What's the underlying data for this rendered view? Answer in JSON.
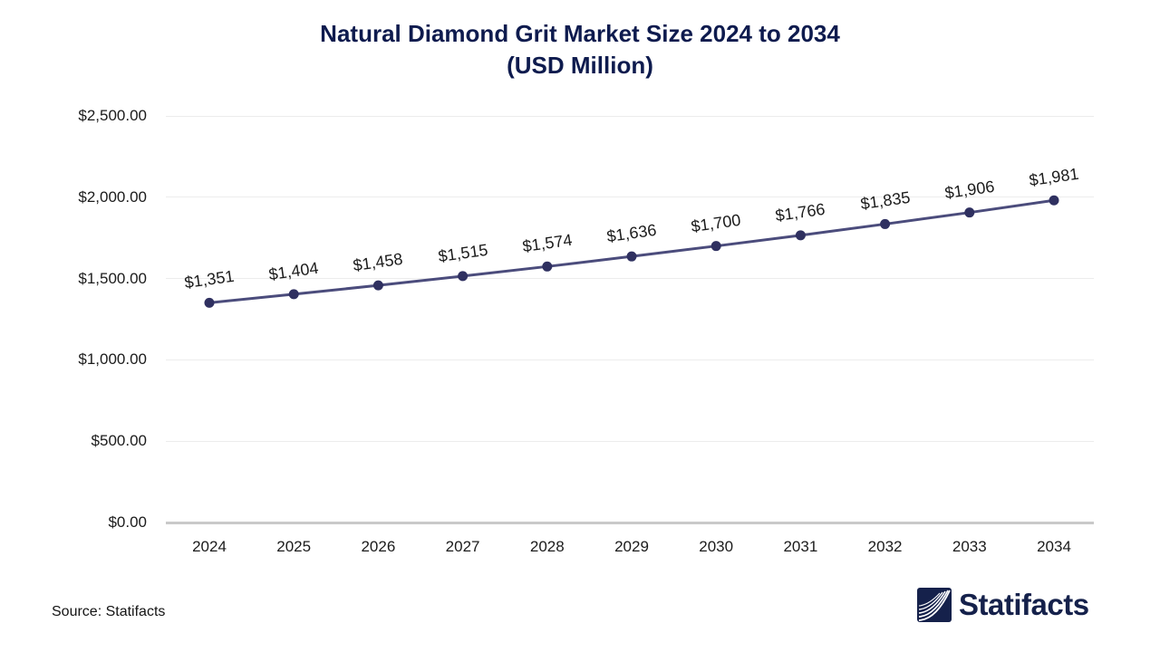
{
  "title": {
    "line1": "Natural Diamond Grit Market Size 2024 to 2034",
    "line2": "(USD Million)"
  },
  "source": "Source: Statifacts",
  "brand": {
    "name": "Statifacts",
    "logo_icon": "waves-icon"
  },
  "colors": {
    "title": "#0e1b4e",
    "line": "#4b4c7c",
    "marker": "#2f3060",
    "grid": "#ececec",
    "axis": "#c9c9c9",
    "text": "#1b1b1b",
    "brand": "#15214b"
  },
  "chart_data": {
    "type": "line",
    "title": "Natural Diamond Grit Market Size 2024 to 2034 (USD Million)",
    "xlabel": "",
    "ylabel": "",
    "categories": [
      "2024",
      "2025",
      "2026",
      "2027",
      "2028",
      "2029",
      "2030",
      "2031",
      "2032",
      "2033",
      "2034"
    ],
    "series": [
      {
        "name": "Natural Diamond Grit Market Size (USD Million)",
        "values": [
          1351,
          1404,
          1458,
          1515,
          1574,
          1636,
          1700,
          1766,
          1835,
          1906,
          1981
        ]
      }
    ],
    "point_labels": [
      "$1,351",
      "$1,404",
      "$1,458",
      "$1,515",
      "$1,574",
      "$1,636",
      "$1,700",
      "$1,766",
      "$1,835",
      "$1,906",
      "$1,981"
    ],
    "ylim": [
      0,
      2500
    ],
    "yticks": [
      {
        "value": 0,
        "label": "$0.00"
      },
      {
        "value": 500,
        "label": "$500.00"
      },
      {
        "value": 1000,
        "label": "$1,000.00"
      },
      {
        "value": 1500,
        "label": "$1,500.00"
      },
      {
        "value": 2000,
        "label": "$2,000.00"
      },
      {
        "value": 2500,
        "label": "$2,500.00"
      }
    ],
    "grid": true,
    "legend": false
  }
}
